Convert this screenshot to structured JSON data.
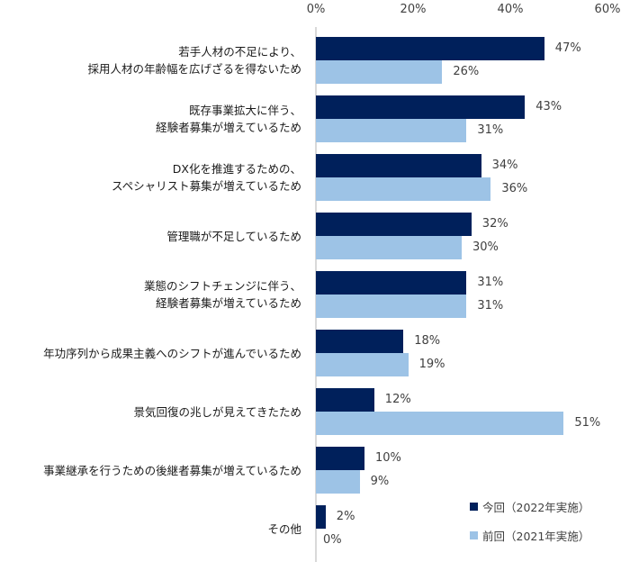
{
  "chart_data": {
    "type": "bar",
    "orientation": "horizontal",
    "title": "",
    "xlabel": "",
    "ylabel": "",
    "xlim": [
      0,
      60
    ],
    "x_ticks": [
      "0%",
      "20%",
      "40%",
      "60%"
    ],
    "grid": false,
    "legend_position": "bottom-right",
    "categories": [
      "若手人材の不足により、\n採用人材の年齢幅を広げざるを得ないため",
      "既存事業拡大に伴う、\n経験者募集が増えているため",
      "DX化を推進するための、\nスペシャリスト募集が増えているため",
      "管理職が不足しているため",
      "業態のシフトチェンジに伴う、\n経験者募集が増えているため",
      "年功序列から成果主義へのシフトが進んでいるため",
      "景気回復の兆しが見えてきたため",
      "事業継承を行うための後継者募集が増えているため",
      "その他"
    ],
    "series": [
      {
        "name": "今回（2022年実施）",
        "color": "#00205B",
        "values": [
          47,
          43,
          34,
          32,
          31,
          18,
          12,
          10,
          2
        ]
      },
      {
        "name": "前回（2021年実施）",
        "color": "#9DC3E6",
        "values": [
          26,
          31,
          36,
          30,
          31,
          19,
          51,
          9,
          0
        ]
      }
    ]
  },
  "axis": {
    "ticks": [
      {
        "label": "0%",
        "value": 0
      },
      {
        "label": "20%",
        "value": 20
      },
      {
        "label": "40%",
        "value": 40
      },
      {
        "label": "60%",
        "value": 60
      }
    ]
  },
  "categories": [
    {
      "line1": "若手人材の不足により、",
      "line2": "採用人材の年齢幅を広げざるを得ないため",
      "cur": 47,
      "prev": 26,
      "cur_label": "47%",
      "prev_label": "26%"
    },
    {
      "line1": "既存事業拡大に伴う、",
      "line2": "経験者募集が増えているため",
      "cur": 43,
      "prev": 31,
      "cur_label": "43%",
      "prev_label": "31%"
    },
    {
      "line1": "DX化を推進するための、",
      "line2": "スペシャリスト募集が増えているため",
      "cur": 34,
      "prev": 36,
      "cur_label": "34%",
      "prev_label": "36%"
    },
    {
      "line1": "管理職が不足しているため",
      "line2": "",
      "cur": 32,
      "prev": 30,
      "cur_label": "32%",
      "prev_label": "30%"
    },
    {
      "line1": "業態のシフトチェンジに伴う、",
      "line2": "経験者募集が増えているため",
      "cur": 31,
      "prev": 31,
      "cur_label": "31%",
      "prev_label": "31%"
    },
    {
      "line1": "年功序列から成果主義へのシフトが進んでいるため",
      "line2": "",
      "cur": 18,
      "prev": 19,
      "cur_label": "18%",
      "prev_label": "19%"
    },
    {
      "line1": "景気回復の兆しが見えてきたため",
      "line2": "",
      "cur": 12,
      "prev": 51,
      "cur_label": "12%",
      "prev_label": "51%"
    },
    {
      "line1": "事業継承を行うための後継者募集が増えているため",
      "line2": "",
      "cur": 10,
      "prev": 9,
      "cur_label": "10%",
      "prev_label": "9%"
    },
    {
      "line1": "その他",
      "line2": "",
      "cur": 2,
      "prev": 0,
      "cur_label": "2%",
      "prev_label": "0%"
    }
  ],
  "legend": {
    "current": {
      "label": "今回（2022年実施）",
      "color": "#00205B"
    },
    "previous": {
      "label": "前回（2021年実施）",
      "color": "#9DC3E6"
    }
  }
}
